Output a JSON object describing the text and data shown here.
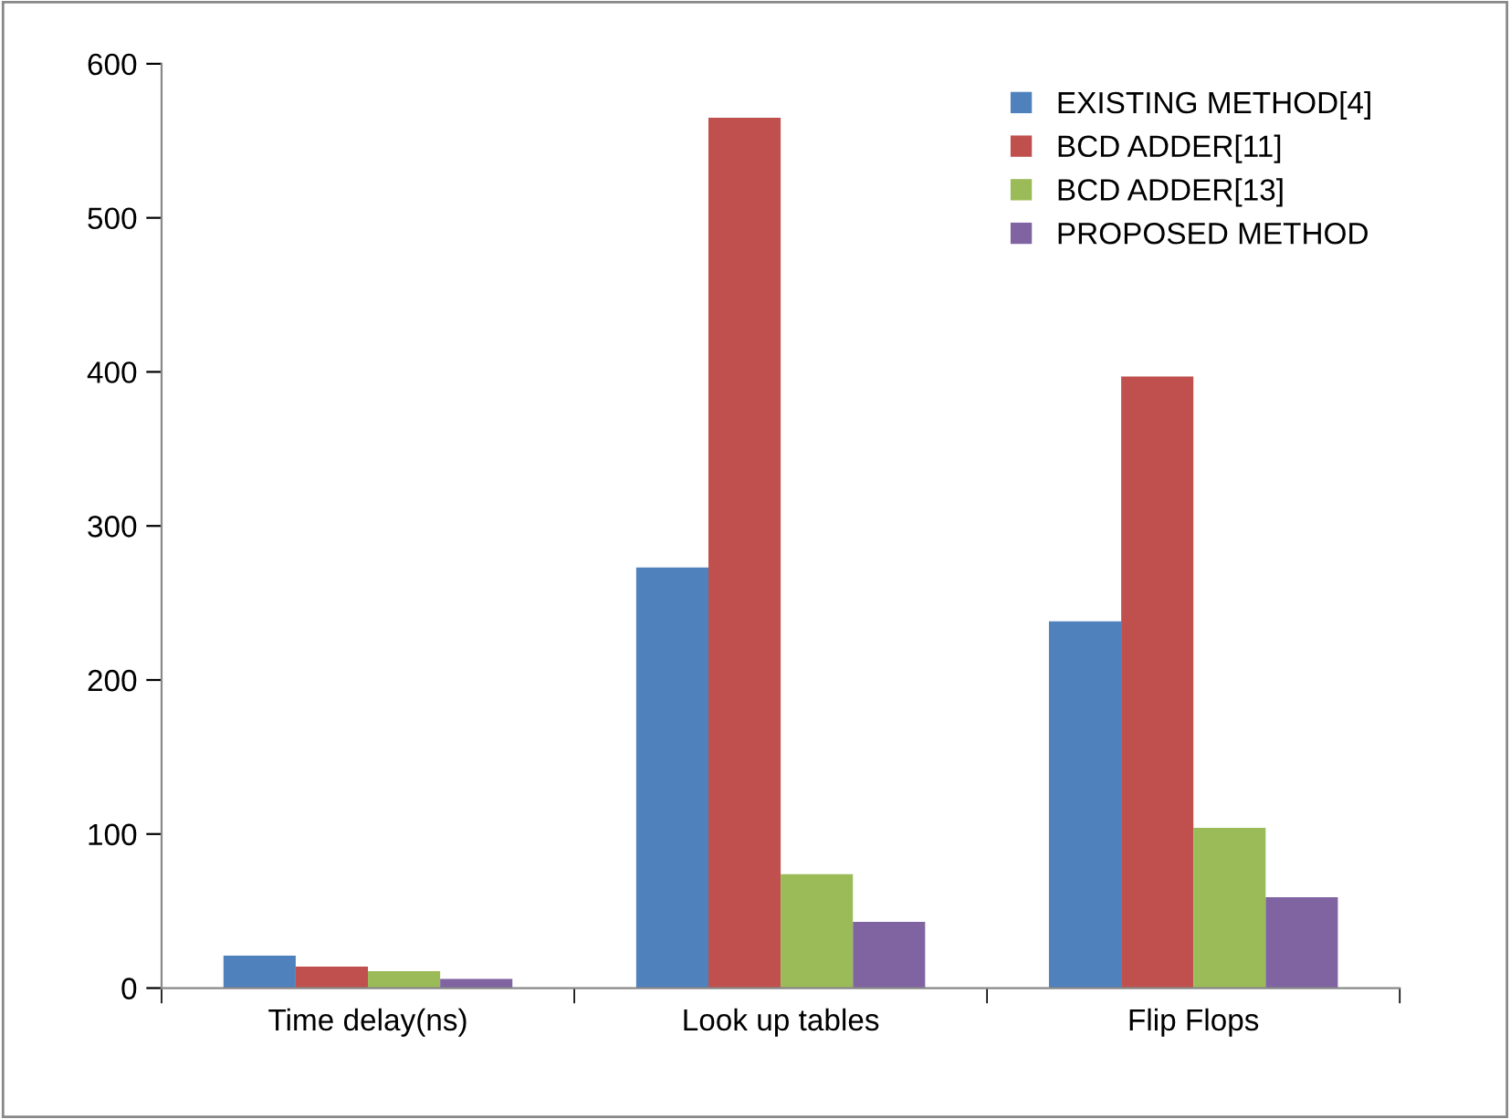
{
  "chart_data": {
    "type": "bar",
    "categories": [
      "Time delay(ns)",
      "Look up tables",
      "Flip Flops"
    ],
    "series": [
      {
        "name": "EXISTING METHOD[4]",
        "color": "#4f81bd",
        "values": [
          21,
          273,
          238
        ]
      },
      {
        "name": "BCD ADDER[11]",
        "color": "#c0504d",
        "values": [
          14,
          565,
          397
        ]
      },
      {
        "name": "BCD ADDER[13]",
        "color": "#9bbb59",
        "values": [
          11,
          74,
          104
        ]
      },
      {
        "name": "PROPOSED METHOD",
        "color": "#8064a2",
        "values": [
          6,
          43,
          59
        ]
      }
    ],
    "ylim": [
      0,
      600
    ],
    "yticks": [
      0,
      100,
      200,
      300,
      400,
      500,
      600
    ],
    "grid": false,
    "legend": "top right"
  }
}
